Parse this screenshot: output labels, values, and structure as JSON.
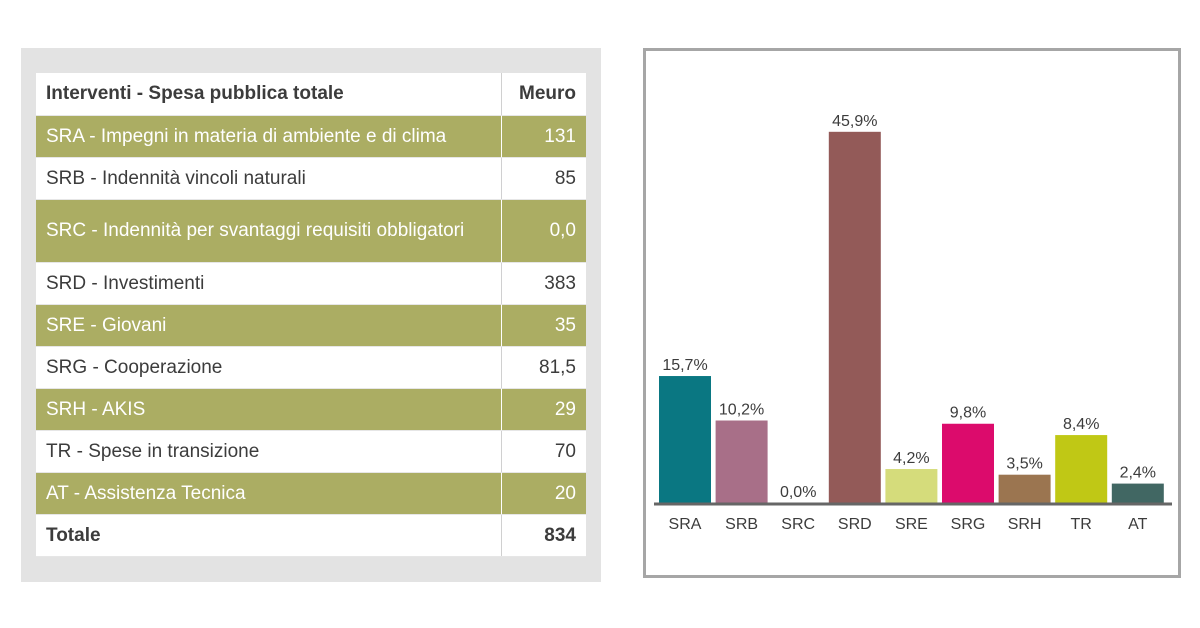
{
  "table": {
    "header": {
      "label": "Interventi - Spesa pubblica totale",
      "unit": "Meuro"
    },
    "rows": [
      {
        "label": "SRA - Impegni in materia di ambiente e di clima",
        "value": "131"
      },
      {
        "label": "SRB - Indennità vincoli naturali",
        "value": "85"
      },
      {
        "label": "SRC - Indennità per svantaggi requisiti obbligatori",
        "value": "0,0"
      },
      {
        "label": "SRD - Investimenti",
        "value": "383"
      },
      {
        "label": "SRE - Giovani",
        "value": "35"
      },
      {
        "label": "SRG - Cooperazione",
        "value": "81,5"
      },
      {
        "label": "SRH - AKIS",
        "value": "29"
      },
      {
        "label": "TR - Spese in transizione",
        "value": "70"
      },
      {
        "label": "AT - Assistenza Tecnica",
        "value": "20"
      }
    ],
    "total": {
      "label": "Totale",
      "value": "834"
    },
    "colors": {
      "highlight_row": "#abad63",
      "panel_bg": "#e3e3e3"
    }
  },
  "chart_data": {
    "type": "bar",
    "categories": [
      "SRA",
      "SRB",
      "SRC",
      "SRD",
      "SRE",
      "SRG",
      "SRH",
      "TR",
      "AT"
    ],
    "values": [
      15.7,
      10.2,
      0.0,
      45.9,
      4.2,
      9.8,
      3.5,
      8.4,
      2.4
    ],
    "data_labels": [
      "15,7%",
      "10,2%",
      "0,0%",
      "45,9%",
      "4,2%",
      "9,8%",
      "3,5%",
      "8,4%",
      "2,4%"
    ],
    "colors": [
      "#0a7782",
      "#a86f88",
      "#cccccc",
      "#935a58",
      "#d5dc7b",
      "#dc0b6c",
      "#9b7550",
      "#c0c815",
      "#416763"
    ],
    "title": "",
    "xlabel": "",
    "ylabel": "",
    "ylim": [
      0,
      46
    ],
    "grid": false
  }
}
